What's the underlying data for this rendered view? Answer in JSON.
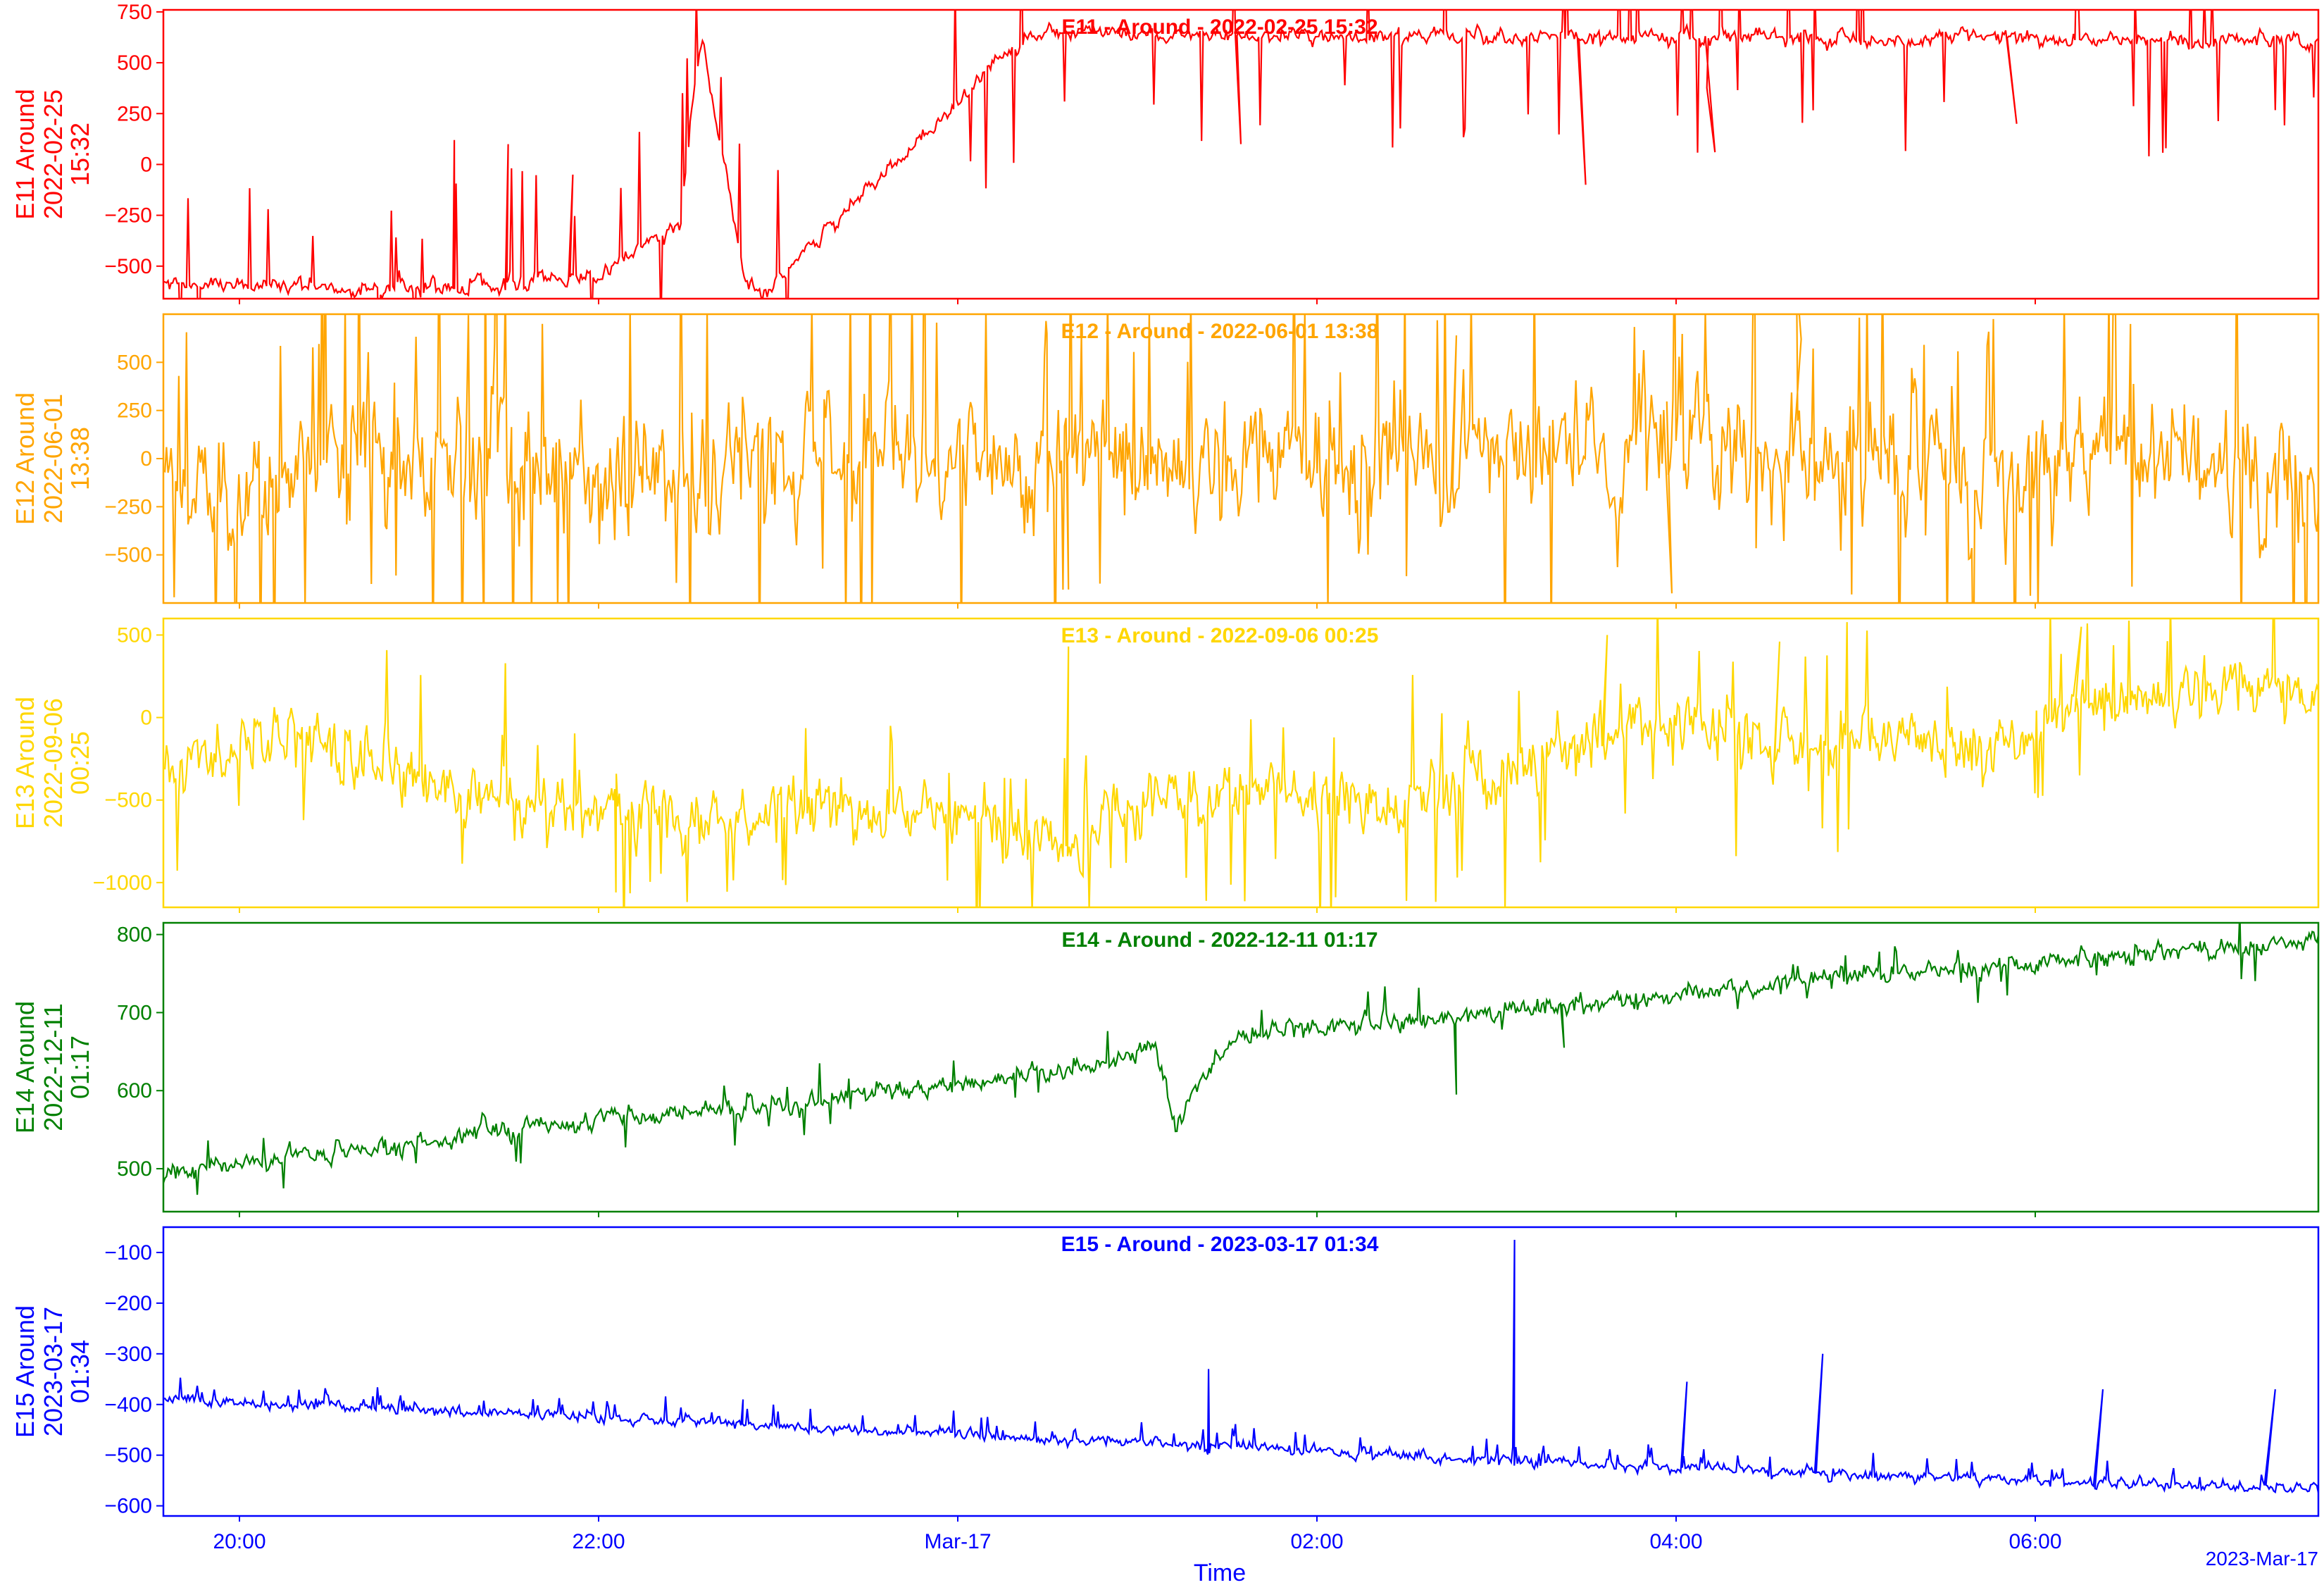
{
  "chart_data": {
    "type": "line",
    "x_axis": {
      "label": "Time",
      "ticks": [
        "20:00",
        "22:00",
        "Mar-17",
        "02:00",
        "04:00",
        "06:00"
      ],
      "offset_label": "2023-Mar-17",
      "color": "#0000ff"
    },
    "panels": [
      {
        "id": "e11",
        "title": "E11 - Around - 2022-02-25 15:32",
        "ylabel": [
          "E11 Around",
          "2022-02-25",
          "15:32"
        ],
        "color": "#ff0000",
        "ylim": [
          -660,
          760
        ],
        "yticks": [
          -500,
          -250,
          0,
          250,
          500,
          750
        ],
        "ytick_labels": [
          "−500",
          "−250",
          "0",
          "250",
          "500",
          "750"
        ],
        "profile": [
          [
            0,
            -580
          ],
          [
            0.05,
            -590
          ],
          [
            0.1,
            -620
          ],
          [
            0.2,
            -560
          ],
          [
            0.27,
            -590
          ],
          [
            0.28,
            -620
          ],
          [
            0.24,
            -300
          ],
          [
            0.245,
            300
          ],
          [
            0.25,
            620
          ],
          [
            0.4,
            640
          ],
          [
            0.6,
            630
          ],
          [
            0.8,
            620
          ],
          [
            1,
            610
          ]
        ],
        "noise": 18,
        "spikes": [
          [
            0.135,
            120,
            0.2
          ],
          [
            0.16,
            100,
            0.2
          ],
          [
            0.19,
            -50,
            0.2
          ],
          [
            0.5,
            100,
            0.15
          ],
          [
            0.66,
            -100,
            0.15
          ],
          [
            0.72,
            60,
            0.15
          ],
          [
            0.86,
            200,
            0.15
          ]
        ],
        "spike_density": 0.05
      },
      {
        "id": "e12",
        "title": "E12 - Around - 2022-06-01 13:38",
        "ylabel": [
          "E12 Around",
          "2022-06-01",
          "13:38"
        ],
        "color": "#ffa500",
        "ylim": [
          -750,
          750
        ],
        "yticks": [
          -500,
          -250,
          0,
          250,
          500
        ],
        "ytick_labels": [
          "−500",
          "−250",
          "0",
          "250",
          "500"
        ],
        "profile": [
          [
            0,
            -150
          ],
          [
            0.1,
            -20
          ],
          [
            0.2,
            -100
          ],
          [
            0.35,
            40
          ],
          [
            0.5,
            -10
          ],
          [
            0.65,
            30
          ],
          [
            0.8,
            -20
          ],
          [
            0.95,
            0
          ],
          [
            1,
            -200
          ]
        ],
        "noise": 150,
        "spikes": [
          [
            0.41,
            650,
            0.2
          ],
          [
            0.42,
            -680,
            0.2
          ],
          [
            0.6,
            640,
            0.2
          ],
          [
            0.7,
            -700,
            0.2
          ],
          [
            0.76,
            620,
            0.2
          ]
        ],
        "spike_density": 0.08
      },
      {
        "id": "e13",
        "title": "E13 - Around - 2022-09-06 00:25",
        "ylabel": [
          "E13 Around",
          "2022-09-06",
          "00:25"
        ],
        "color": "#ffd700",
        "ylim": [
          -1150,
          600
        ],
        "yticks": [
          -1000,
          -500,
          0,
          500
        ],
        "ytick_labels": [
          "−1000",
          "−500",
          "0",
          "500"
        ],
        "profile": [
          [
            0,
            -300
          ],
          [
            0.05,
            -100
          ],
          [
            0.1,
            -250
          ],
          [
            0.15,
            -500
          ],
          [
            0.25,
            -600
          ],
          [
            0.37,
            -550
          ],
          [
            0.42,
            -800
          ],
          [
            0.45,
            -500
          ],
          [
            0.5,
            -400
          ],
          [
            0.57,
            -550
          ],
          [
            0.63,
            -300
          ],
          [
            0.68,
            0
          ],
          [
            0.75,
            -150
          ],
          [
            0.85,
            -150
          ],
          [
            0.9,
            100
          ],
          [
            0.95,
            200
          ],
          [
            1,
            100
          ]
        ],
        "noise": 90,
        "spikes": [
          [
            0.21,
            -1060,
            0.2
          ],
          [
            0.42,
            430,
            0.2
          ],
          [
            0.67,
            500,
            0.2
          ],
          [
            0.75,
            460,
            0.2
          ],
          [
            0.89,
            550,
            0.2
          ]
        ],
        "spike_density": 0.06
      },
      {
        "id": "e14",
        "title": "E14 - Around - 2022-12-11 01:17",
        "ylabel": [
          "E14 Around",
          "2022-12-11",
          "01:17"
        ],
        "color": "#008000",
        "ylim": [
          445,
          815
        ],
        "yticks": [
          500,
          600,
          700,
          800
        ],
        "ytick_labels": [
          "500",
          "600",
          "700",
          "800"
        ],
        "profile": [
          [
            0,
            495
          ],
          [
            0.1,
            530
          ],
          [
            0.2,
            560
          ],
          [
            0.3,
            585
          ],
          [
            0.4,
            615
          ],
          [
            0.46,
            650
          ],
          [
            0.47,
            560
          ],
          [
            0.49,
            650
          ],
          [
            0.5,
            675
          ],
          [
            0.6,
            695
          ],
          [
            0.7,
            720
          ],
          [
            0.8,
            750
          ],
          [
            0.9,
            770
          ],
          [
            1,
            795
          ]
        ],
        "noise": 6,
        "spikes": [
          [
            0.6,
            595,
            0.3
          ],
          [
            0.65,
            655,
            0.3
          ]
        ],
        "spike_density": 0.03
      },
      {
        "id": "e15",
        "title": "E15 - Around - 2023-03-17 01:34",
        "ylabel": [
          "E15 Around",
          "2023-03-17",
          "01:34"
        ],
        "color": "#0000ff",
        "ylim": [
          -620,
          -50
        ],
        "yticks": [
          -600,
          -500,
          -400,
          -300,
          -200,
          -100
        ],
        "ytick_labels": [
          "−600",
          "−500",
          "−400",
          "−300",
          "−200",
          "−100"
        ],
        "profile": [
          [
            0,
            -390
          ],
          [
            0.1,
            -405
          ],
          [
            0.2,
            -425
          ],
          [
            0.3,
            -445
          ],
          [
            0.4,
            -465
          ],
          [
            0.5,
            -485
          ],
          [
            0.6,
            -505
          ],
          [
            0.7,
            -525
          ],
          [
            0.8,
            -540
          ],
          [
            0.9,
            -555
          ],
          [
            1,
            -565
          ]
        ],
        "noise": 5,
        "spikes": [
          [
            0.627,
            -75,
            0.8
          ],
          [
            0.485,
            -330,
            0.5
          ],
          [
            0.269,
            -390,
            0.5
          ],
          [
            0.707,
            -355,
            0.5
          ],
          [
            0.77,
            -300,
            0.5
          ],
          [
            0.9,
            -370,
            0.4
          ],
          [
            0.98,
            -370,
            0.4
          ]
        ],
        "spike_density": 0.06
      }
    ]
  }
}
